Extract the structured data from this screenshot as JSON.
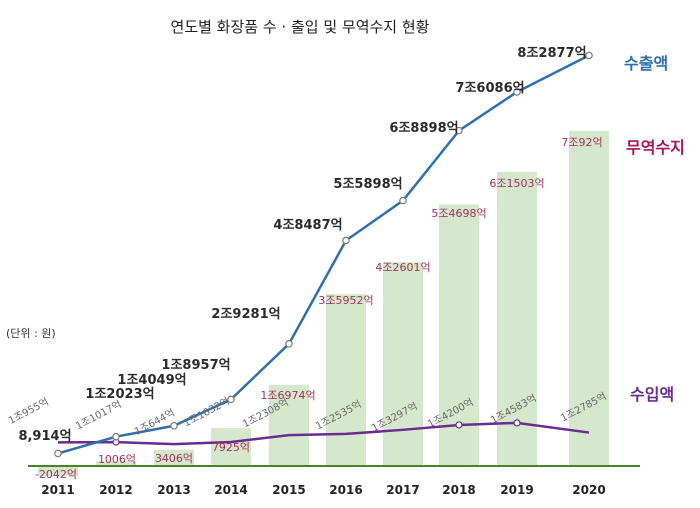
{
  "chart_data": {
    "type": "line",
    "title": "연도별 화장품 수 · 출입 및 무역수지 현황",
    "unit_note": "(단위 : 원)",
    "categories": [
      "2011",
      "2012",
      "2013",
      "2014",
      "2015",
      "2016",
      "2017",
      "2018",
      "2019",
      "2020"
    ],
    "series": [
      {
        "name": "수출액",
        "kind": "line",
        "color": "#2f6fae",
        "values": [
          8914,
          12023,
          14049,
          18957,
          29281,
          48487,
          55898,
          68898,
          76086,
          82877
        ],
        "labels": [
          "8,914억",
          "1조2023억",
          "1조4049억",
          "1조8957억",
          "2조9281억",
          "4조8487억",
          "5조5898억",
          "6조8898억",
          "7조6086억",
          "8조2877억"
        ]
      },
      {
        "name": "수입액",
        "kind": "line",
        "color": "#6a2c91",
        "values": [
          10955,
          11017,
          10644,
          11032,
          12308,
          12535,
          13297,
          14200,
          14583,
          12785
        ],
        "labels": [
          "1조955억",
          "1조1017억",
          "1조644억",
          "1조1032억",
          "1조2308억",
          "1조2535억",
          "1조3297억",
          "1조4200억",
          "1조4583억",
          "1조2785억"
        ]
      },
      {
        "name": "무역수지",
        "kind": "bar",
        "color": "#d5e8cb",
        "values": [
          -2042,
          1006,
          3406,
          7925,
          16974,
          35952,
          42601,
          54698,
          61503,
          70092
        ],
        "labels": [
          "-2042억",
          "1006억",
          "3406억",
          "7925억",
          "1조6974억",
          "3조5952억",
          "4조2601억",
          "5조4698억",
          "6조1503억",
          "7조92억"
        ]
      }
    ],
    "colors": {
      "export": "#2f6fae",
      "import": "#6a2c91",
      "balance_label": "#a8305f",
      "balance_legend": "#a3175a",
      "bar": "#d5e8cb",
      "baseline": "#4e7f2c"
    }
  }
}
